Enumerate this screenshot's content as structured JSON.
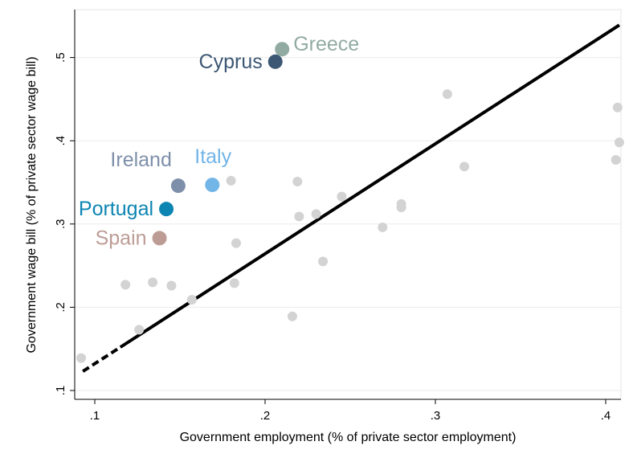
{
  "chart_data": {
    "type": "scatter",
    "xlabel": "Government employment (% of private sector employment)",
    "ylabel": "Government wage bill (% of private sector wage bill)",
    "xlim": [
      0.09,
      0.41
    ],
    "ylim": [
      0.09,
      0.56
    ],
    "xticks": [
      0.1,
      0.2,
      0.3,
      0.4
    ],
    "xtick_labels": [
      ".1",
      ".2",
      ".3",
      ".4"
    ],
    "yticks": [
      0.1,
      0.2,
      0.3,
      0.4,
      0.5
    ],
    "ytick_labels": [
      ".1",
      ".2",
      ".3",
      ".4",
      ".5"
    ],
    "grid": "horizontal",
    "fit_line": {
      "solid": {
        "x": [
          0.115,
          0.408
        ],
        "y": [
          0.152,
          0.539
        ]
      },
      "dashed": {
        "x": [
          0.093,
          0.115
        ],
        "y": [
          0.123,
          0.152
        ]
      }
    },
    "highlighted": [
      {
        "label": "Greece",
        "x": 0.21,
        "y": 0.51,
        "color": "#92ABA2",
        "label_pos": "right"
      },
      {
        "label": "Cyprus",
        "x": 0.206,
        "y": 0.495,
        "color": "#3C5774",
        "label_pos": "left"
      },
      {
        "label": "Italy",
        "x": 0.169,
        "y": 0.347,
        "color": "#72B5E7",
        "label_pos": "above-right"
      },
      {
        "label": "Ireland",
        "x": 0.149,
        "y": 0.346,
        "color": "#7E8FA9",
        "label_pos": "above-left"
      },
      {
        "label": "Portugal",
        "x": 0.142,
        "y": 0.318,
        "color": "#0D85B2",
        "label_pos": "left"
      },
      {
        "label": "Spain",
        "x": 0.138,
        "y": 0.283,
        "color": "#BC9C95",
        "label_pos": "left"
      }
    ],
    "others_color": "#D3D3D3",
    "others": [
      {
        "x": 0.092,
        "y": 0.139
      },
      {
        "x": 0.118,
        "y": 0.227
      },
      {
        "x": 0.126,
        "y": 0.173
      },
      {
        "x": 0.134,
        "y": 0.23
      },
      {
        "x": 0.145,
        "y": 0.226
      },
      {
        "x": 0.157,
        "y": 0.209
      },
      {
        "x": 0.18,
        "y": 0.352
      },
      {
        "x": 0.182,
        "y": 0.229
      },
      {
        "x": 0.183,
        "y": 0.277
      },
      {
        "x": 0.216,
        "y": 0.189
      },
      {
        "x": 0.219,
        "y": 0.351
      },
      {
        "x": 0.22,
        "y": 0.309
      },
      {
        "x": 0.23,
        "y": 0.312
      },
      {
        "x": 0.234,
        "y": 0.255
      },
      {
        "x": 0.245,
        "y": 0.333
      },
      {
        "x": 0.269,
        "y": 0.296
      },
      {
        "x": 0.28,
        "y": 0.32
      },
      {
        "x": 0.28,
        "y": 0.324
      },
      {
        "x": 0.307,
        "y": 0.456
      },
      {
        "x": 0.317,
        "y": 0.369
      },
      {
        "x": 0.406,
        "y": 0.377
      },
      {
        "x": 0.407,
        "y": 0.44
      },
      {
        "x": 0.408,
        "y": 0.398
      }
    ]
  }
}
